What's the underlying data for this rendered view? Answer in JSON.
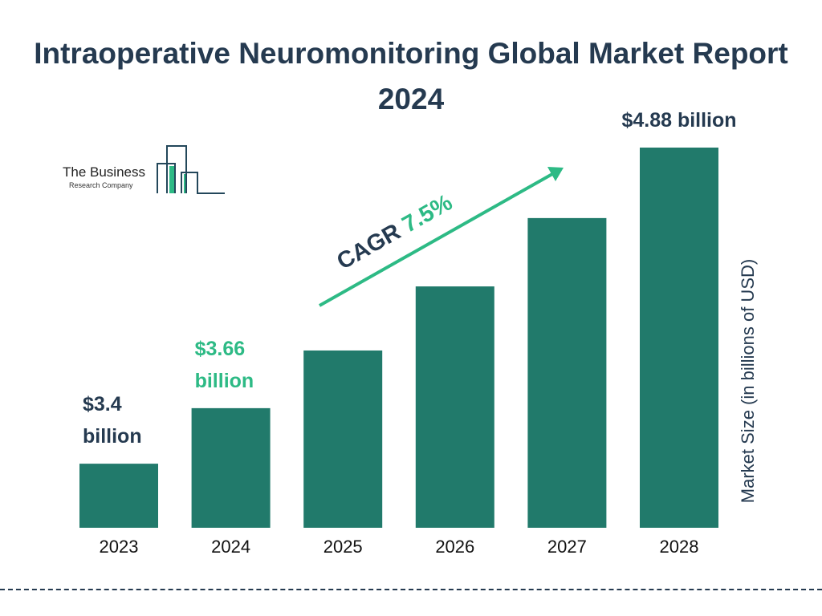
{
  "chart_data": {
    "type": "bar",
    "title": "Intraoperative Neuromonitoring Global Market Report 2024",
    "categories": [
      "2023",
      "2024",
      "2025",
      "2026",
      "2027",
      "2028"
    ],
    "values": [
      3.4,
      3.66,
      3.93,
      4.23,
      4.55,
      4.88
    ],
    "data_labels": [
      {
        "category": "2023",
        "lines": [
          "$3.4",
          "billion"
        ],
        "color": "#253a50"
      },
      {
        "category": "2024",
        "lines": [
          "$3.66",
          "billion"
        ],
        "color": "#2dba85"
      },
      {
        "category": "2028",
        "lines": [
          "$4.88 billion"
        ],
        "color": "#253a50"
      }
    ],
    "xlabel": "",
    "ylabel": "Market Size (in billions of USD)",
    "ylim": [
      3.1,
      4.88
    ],
    "grid": false,
    "bar_color": "#217a6b",
    "annotation": {
      "label": "CAGR",
      "value": "7.5%",
      "label_color": "#253a50",
      "value_color": "#2dba85"
    }
  },
  "logo": {
    "line1": "The Business",
    "line2": "Research Company",
    "accent": "#2dba85",
    "stroke": "#23475a"
  }
}
